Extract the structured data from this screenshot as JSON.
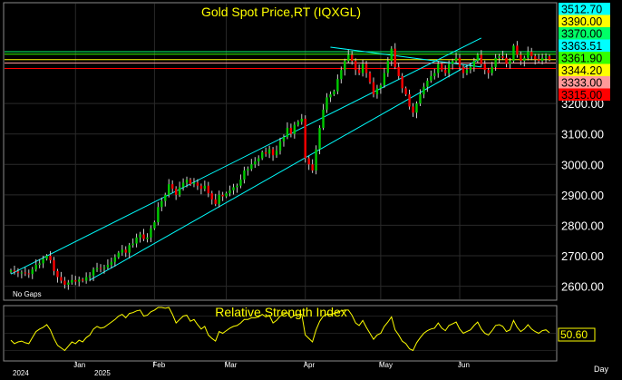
{
  "chart_data": [
    {
      "type": "candlestick",
      "title": "Gold Spot Price,RT (IQXGL)",
      "note": "No Gaps",
      "y_ticks": [
        2600,
        2700,
        2800,
        2900,
        3000,
        3100,
        3200
      ],
      "ylim": [
        2560,
        3525
      ],
      "x_ticks": [
        {
          "label": "2024",
          "row": "year"
        },
        {
          "label": "Jan",
          "row": "month"
        },
        {
          "label": "2025",
          "row": "year"
        },
        {
          "label": "Feb",
          "row": "month"
        },
        {
          "label": "Mar",
          "row": "month"
        },
        {
          "label": "Apr",
          "row": "month"
        },
        {
          "label": "May",
          "row": "month"
        },
        {
          "label": "Jun",
          "row": "month"
        }
      ],
      "price_labels": [
        {
          "label": "3512.70",
          "bg": "#00ffff"
        },
        {
          "label": "3390.00",
          "bg": "#ffff00"
        },
        {
          "label": "3370.00",
          "bg": "#00ff66"
        },
        {
          "label": "3363.51",
          "bg": "#00ffff"
        },
        {
          "label": "3361.90",
          "bg": "#33ff00"
        },
        {
          "label": "3344.20",
          "bg": "#ffff00"
        },
        {
          "label": "3333.00",
          "bg": "#ff9999"
        },
        {
          "label": "3315.00",
          "bg": "#ff0000"
        }
      ],
      "horizontal_lines": [
        {
          "value": 3370,
          "color": "#00ff66"
        },
        {
          "value": 3361.9,
          "color": "#33ff00"
        },
        {
          "value": 3344.2,
          "color": "#ffff00"
        },
        {
          "value": 3333,
          "color": "#ff9999"
        },
        {
          "value": 3315,
          "color": "#ff0000"
        }
      ],
      "trendlines": [
        {
          "from": [
            0,
            2640
          ],
          "to": [
            131,
            3415
          ],
          "color": "#00ffff"
        },
        {
          "from": [
            22,
            2620
          ],
          "to": [
            131,
            3350
          ],
          "color": "#00ffff"
        },
        {
          "from": [
            89,
            3385
          ],
          "to": [
            131,
            3320
          ],
          "color": "#00ffff"
        }
      ],
      "closes": [
        2652,
        2648,
        2644,
        2645,
        2642,
        2640,
        2655,
        2670,
        2675,
        2690,
        2700,
        2685,
        2650,
        2630,
        2618,
        2605,
        2612,
        2620,
        2615,
        2622,
        2618,
        2630,
        2635,
        2655,
        2660,
        2658,
        2662,
        2670,
        2680,
        2695,
        2710,
        2720,
        2710,
        2735,
        2740,
        2760,
        2770,
        2755,
        2760,
        2790,
        2810,
        2860,
        2880,
        2900,
        2935,
        2920,
        2900,
        2925,
        2940,
        2950,
        2935,
        2940,
        2930,
        2920,
        2930,
        2905,
        2885,
        2870,
        2900,
        2895,
        2905,
        2915,
        2925,
        2930,
        2950,
        2980,
        2985,
        3000,
        3010,
        3020,
        3040,
        3035,
        3050,
        3030,
        3045,
        3075,
        3090,
        3120,
        3100,
        3130,
        3140,
        3150,
        3020,
        3000,
        2980,
        3050,
        3120,
        3180,
        3220,
        3230,
        3240,
        3280,
        3310,
        3340,
        3360,
        3340,
        3310,
        3300,
        3330,
        3300,
        3270,
        3230,
        3250,
        3260,
        3300,
        3340,
        3380,
        3320,
        3290,
        3250,
        3230,
        3190,
        3170,
        3200,
        3230,
        3255,
        3275,
        3290,
        3300,
        3330,
        3310,
        3300,
        3330,
        3340,
        3350,
        3320,
        3300,
        3310,
        3320,
        3340,
        3360,
        3330,
        3310,
        3300,
        3320,
        3350,
        3355,
        3350,
        3330,
        3340,
        3390,
        3360,
        3340,
        3350,
        3370,
        3355,
        3345,
        3340,
        3350,
        3355,
        3344
      ],
      "ohlc_ranges": {
        "high_pad": 14,
        "low_pad": 14
      },
      "colors": {
        "up": "#00cc00",
        "down": "#ff0000",
        "wick": "#cccccc",
        "grid": "#2a2a2a",
        "axis_text": "#ffffff",
        "title": "#ffff00"
      }
    },
    {
      "type": "line",
      "title": "Relative Strength Index",
      "last_label": "50.60",
      "ylim": [
        20,
        80
      ],
      "values": [
        42,
        38,
        40,
        41,
        39,
        38,
        45,
        52,
        55,
        57,
        60,
        54,
        44,
        36,
        33,
        30,
        35,
        40,
        38,
        42,
        40,
        45,
        48,
        55,
        58,
        56,
        57,
        60,
        63,
        66,
        70,
        72,
        68,
        73,
        74,
        76,
        77,
        70,
        71,
        75,
        77,
        80,
        80,
        79,
        80,
        72,
        62,
        66,
        70,
        71,
        64,
        66,
        60,
        55,
        58,
        48,
        44,
        41,
        52,
        50,
        53,
        56,
        58,
        59,
        62,
        66,
        66,
        68,
        68,
        69,
        72,
        69,
        71,
        62,
        65,
        70,
        72,
        74,
        68,
        71,
        72,
        72,
        48,
        44,
        40,
        54,
        64,
        70,
        72,
        72,
        73,
        75,
        76,
        77,
        77,
        71,
        62,
        59,
        65,
        57,
        50,
        43,
        48,
        50,
        58,
        63,
        69,
        54,
        48,
        41,
        38,
        32,
        30,
        39,
        45,
        50,
        53,
        55,
        56,
        62,
        56,
        53,
        59,
        61,
        63,
        55,
        50,
        52,
        54,
        59,
        63,
        55,
        50,
        48,
        53,
        59,
        60,
        58,
        52,
        54,
        65,
        57,
        52,
        55,
        60,
        55,
        52,
        50,
        53,
        54,
        50.6
      ],
      "color": "#ffff00"
    }
  ],
  "footer": {
    "period_label": "Day"
  }
}
